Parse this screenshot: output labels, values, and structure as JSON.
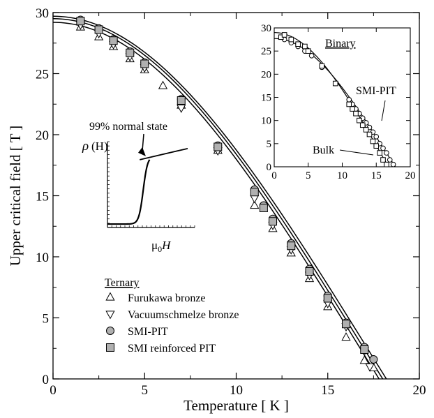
{
  "chart_data": {
    "type": "scatter",
    "xlabel": "Temperature [ K ]",
    "ylabel": "Upper critical field [ T ]",
    "xlim": [
      0,
      20
    ],
    "ylim": [
      0,
      30
    ],
    "xticks": [
      0,
      5,
      10,
      15,
      20
    ],
    "yticks": [
      0,
      5,
      10,
      15,
      20,
      25,
      30
    ],
    "grid": false,
    "legend": {
      "title": "Ternary",
      "placement": "bottom-left",
      "entries": [
        {
          "series": "furukawa",
          "label": "Furukawa bronze",
          "marker": "triangle-up",
          "fill": "#ffffff"
        },
        {
          "series": "vacuumschmelze",
          "label": "Vacuumschmelze bronze",
          "marker": "triangle-down",
          "fill": "#ffffff"
        },
        {
          "series": "smi_pit",
          "label": "SMI-PIT",
          "marker": "circle",
          "fill": "#b0b0b0"
        },
        {
          "series": "smi_reinforced",
          "label": "SMI reinforced PIT",
          "marker": "square",
          "fill": "#b0b0b0"
        }
      ]
    },
    "series": [
      {
        "id": "furukawa",
        "name": "Furukawa bronze",
        "marker": "triangle-up",
        "fill": "#ffffff",
        "x": [
          1.5,
          2.5,
          3.3,
          4.2,
          5.0,
          6.0,
          7.0,
          9.0,
          11.0,
          12.0,
          13.0,
          14.0,
          15.0,
          16.0,
          17.0,
          17.5
        ],
        "y": [
          28.8,
          28.0,
          27.2,
          26.2,
          25.3,
          24.0,
          22.4,
          18.7,
          14.2,
          12.3,
          10.3,
          8.2,
          5.9,
          3.4,
          1.5,
          0.9
        ]
      },
      {
        "id": "vacuumschmelze",
        "name": "Vacuumschmelze bronze",
        "marker": "triangle-down",
        "fill": "#ffffff",
        "x": [
          1.5,
          2.5,
          3.3,
          4.2,
          5.0,
          7.0,
          9.0,
          11.0,
          12.0,
          13.0,
          14.0,
          15.0,
          16.0,
          17.0,
          17.3
        ],
        "y": [
          29.0,
          28.3,
          27.4,
          26.4,
          25.5,
          22.2,
          18.7,
          14.8,
          12.6,
          10.6,
          8.5,
          6.2,
          4.3,
          2.3,
          1.0
        ]
      },
      {
        "id": "smi_pit",
        "name": "SMI-PIT",
        "marker": "circle",
        "fill": "#b0b0b0",
        "x": [
          1.5,
          2.5,
          3.3,
          4.2,
          5.0,
          7.0,
          9.0,
          11.0,
          11.5,
          12.0,
          13.0,
          14.0,
          15.0,
          16.0,
          17.0,
          17.5
        ],
        "y": [
          29.4,
          28.7,
          27.8,
          26.8,
          25.9,
          22.9,
          19.1,
          15.5,
          14.2,
          13.1,
          11.1,
          9.0,
          6.8,
          4.6,
          2.6,
          1.6
        ]
      },
      {
        "id": "smi_reinforced",
        "name": "SMI reinforced PIT",
        "marker": "square",
        "fill": "#b0b0b0",
        "x": [
          1.5,
          2.5,
          3.3,
          4.2,
          5.0,
          7.0,
          9.0,
          11.0,
          11.5,
          12.0,
          13.0,
          14.0,
          15.0,
          16.0,
          17.0
        ],
        "y": [
          29.3,
          28.6,
          27.7,
          26.7,
          25.8,
          22.8,
          19.0,
          15.3,
          14.0,
          12.9,
          10.9,
          8.8,
          6.6,
          4.5,
          2.4
        ]
      }
    ],
    "fit_curves": [
      {
        "tc": 17.8,
        "b0": 29.2
      },
      {
        "tc": 18.0,
        "b0": 29.5
      },
      {
        "tc": 18.2,
        "b0": 29.7
      }
    ],
    "inset_rho": {
      "ylabel_main": "ρ",
      "ylabel_arg": "(H)",
      "xlabel_sym": "μ",
      "xlabel_sub": "0",
      "xlabel_var": "H",
      "annotation": "99% normal state",
      "x_range": [
        0,
        10
      ],
      "transition_center": 4.1,
      "transition_width": 0.25,
      "onset": 4.6,
      "low_level": 0.04,
      "normal_level": 0.83
    },
    "inset_binary": {
      "title": "Binary",
      "xlim": [
        0,
        20
      ],
      "ylim": [
        0,
        30
      ],
      "xticks": [
        0,
        5,
        10,
        15,
        20
      ],
      "yticks": [
        0,
        5,
        10,
        15,
        20,
        25,
        30
      ],
      "labels": {
        "circle_curve": "SMI-PIT",
        "square_curve": "Bulk"
      },
      "circles": {
        "name": "SMI-PIT",
        "marker": "circle",
        "fill": "#ffffff",
        "x": [
          1.5,
          2.5,
          3.5,
          4.5,
          5.5,
          7.0,
          9.0,
          11.0,
          11.5,
          12.0,
          12.5,
          13.0,
          13.5,
          14.0,
          14.5,
          15.0,
          15.5,
          16.0,
          16.5,
          17.0,
          17.5
        ],
        "y": [
          27.5,
          26.8,
          26.0,
          25.0,
          24.0,
          21.5,
          18.0,
          14.5,
          13.5,
          12.5,
          11.5,
          10.5,
          9.5,
          8.5,
          7.5,
          6.5,
          5.0,
          4.0,
          3.0,
          1.5,
          0.5
        ]
      },
      "squares": {
        "name": "Bulk",
        "marker": "square",
        "fill": "#ffffff",
        "x": [
          1.0,
          1.5,
          2.5,
          3.5,
          4.5,
          5.0,
          7.0,
          9.0,
          11.0,
          11.5,
          12.0,
          12.5,
          13.0,
          13.5,
          14.0,
          14.5,
          15.0,
          15.5,
          16.0,
          16.5
        ],
        "y": [
          28.0,
          28.5,
          27.5,
          26.5,
          26.0,
          25.0,
          21.8,
          18.0,
          13.5,
          12.5,
          11.5,
          10.0,
          9.0,
          8.0,
          7.0,
          5.5,
          4.5,
          3.0,
          1.5,
          0.5
        ]
      },
      "fit_curves": [
        {
          "tc": 17.8,
          "b0": 27.7
        },
        {
          "tc": 16.8,
          "b0": 29.0
        }
      ]
    }
  }
}
